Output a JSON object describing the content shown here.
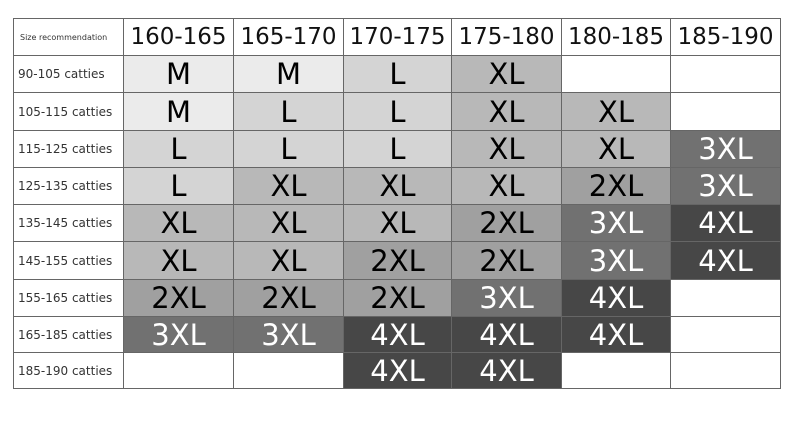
{
  "table": {
    "corner_label": "Size recommendation",
    "columns": [
      "160-165",
      "165-170",
      "170-175",
      "175-180",
      "180-185",
      "185-190"
    ],
    "rows": [
      {
        "label": "90-105 catties",
        "sizes": [
          "M",
          "M",
          "L",
          "XL",
          "",
          ""
        ]
      },
      {
        "label": "105-115 catties",
        "sizes": [
          "M",
          "L",
          "L",
          "XL",
          "XL",
          ""
        ]
      },
      {
        "label": "115-125 catties",
        "sizes": [
          "L",
          "L",
          "L",
          "XL",
          "XL",
          "3XL"
        ]
      },
      {
        "label": "125-135 catties",
        "sizes": [
          "L",
          "XL",
          "XL",
          "XL",
          "2XL",
          "3XL"
        ]
      },
      {
        "label": "135-145 catties",
        "sizes": [
          "XL",
          "XL",
          "XL",
          "2XL",
          "3XL",
          "4XL"
        ]
      },
      {
        "label": "145-155 catties",
        "sizes": [
          "XL",
          "XL",
          "2XL",
          "2XL",
          "3XL",
          "4XL"
        ]
      },
      {
        "label": "155-165 catties",
        "sizes": [
          "2XL",
          "2XL",
          "2XL",
          "3XL",
          "4XL",
          ""
        ]
      },
      {
        "label": "165-185 catties",
        "sizes": [
          "3XL",
          "3XL",
          "4XL",
          "4XL",
          "4XL",
          ""
        ]
      },
      {
        "label": "185-190 catties",
        "sizes": [
          "",
          "",
          "4XL",
          "4XL",
          "",
          ""
        ]
      }
    ],
    "size_colors": {
      "M": "#ebebeb",
      "L": "#d4d4d4",
      "XL": "#b8b8b8",
      "2XL": "#a0a0a0",
      "3XL": "#717171",
      "4XL": "#474747",
      "": "#ffffff"
    },
    "size_text_colors": {
      "M": "#000000",
      "L": "#000000",
      "XL": "#000000",
      "2XL": "#000000",
      "3XL": "#ffffff",
      "4XL": "#ffffff"
    }
  }
}
